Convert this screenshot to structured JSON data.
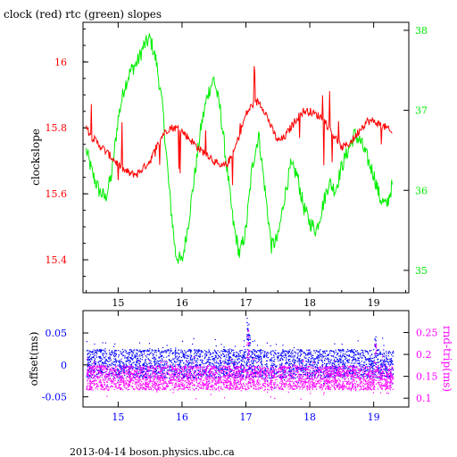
{
  "title": "clock (red) rtc (green) slopes",
  "footer": "2013-04-14 boson.physics.ubc.ca",
  "colors": {
    "clock": "#ff0000",
    "rtc": "#00ee00",
    "offset": "#0000ff",
    "rndtrip": "#ff00ff",
    "axis": "#000000"
  },
  "chart_data": [
    {
      "type": "line",
      "title": "clock (red) rtc (green) slopes",
      "ylabel": "clockslope",
      "ylabel_right": "",
      "xlim": [
        14.45,
        19.55
      ],
      "ylim": [
        15.3,
        16.12
      ],
      "ylim_right": [
        34.72,
        38.1
      ],
      "x_ticks": [
        "15",
        "16",
        "17",
        "18",
        "19"
      ],
      "y_ticks": [
        "15.4",
        "15.6",
        "15.8",
        "16"
      ],
      "y_ticks_right": [
        "35",
        "36",
        "37",
        "38"
      ],
      "series": [
        {
          "name": "clock",
          "axis": "left",
          "x": [
            14.5,
            14.6,
            14.7,
            14.8,
            14.9,
            15.0,
            15.1,
            15.2,
            15.3,
            15.4,
            15.5,
            15.6,
            15.7,
            15.8,
            15.9,
            16.0,
            16.1,
            16.2,
            16.3,
            16.4,
            16.5,
            16.6,
            16.7,
            16.8,
            16.9,
            17.0,
            17.1,
            17.2,
            17.3,
            17.4,
            17.5,
            17.6,
            17.7,
            17.8,
            17.9,
            18.0,
            18.1,
            18.2,
            18.3,
            18.4,
            18.5,
            18.6,
            18.7,
            18.8,
            18.9,
            19.0,
            19.1,
            19.2,
            19.3
          ],
          "values": [
            15.8,
            15.77,
            15.75,
            15.73,
            15.71,
            15.69,
            15.67,
            15.66,
            15.66,
            15.68,
            15.7,
            15.74,
            15.78,
            15.8,
            15.8,
            15.79,
            15.77,
            15.75,
            15.73,
            15.72,
            15.7,
            15.68,
            15.69,
            15.72,
            15.78,
            15.84,
            15.87,
            15.88,
            15.85,
            15.8,
            15.76,
            15.77,
            15.8,
            15.83,
            15.85,
            15.85,
            15.84,
            15.83,
            15.8,
            15.77,
            15.74,
            15.75,
            15.77,
            15.8,
            15.82,
            15.82,
            15.81,
            15.8,
            15.78
          ]
        },
        {
          "name": "rtc",
          "axis": "right",
          "x": [
            14.5,
            14.6,
            14.7,
            14.8,
            14.9,
            15.0,
            15.1,
            15.2,
            15.3,
            15.4,
            15.5,
            15.6,
            15.7,
            15.8,
            15.9,
            16.0,
            16.1,
            16.2,
            16.3,
            16.4,
            16.5,
            16.6,
            16.7,
            16.8,
            16.9,
            17.0,
            17.1,
            17.2,
            17.3,
            17.4,
            17.5,
            17.6,
            17.7,
            17.8,
            17.9,
            18.0,
            18.1,
            18.2,
            18.3,
            18.4,
            18.5,
            18.6,
            18.7,
            18.8,
            18.9,
            19.0,
            19.1,
            19.2,
            19.3
          ],
          "values": [
            36.5,
            36.2,
            36.0,
            35.9,
            36.2,
            36.9,
            37.3,
            37.5,
            37.6,
            37.8,
            37.9,
            37.6,
            37.0,
            36.0,
            35.2,
            35.1,
            35.6,
            36.2,
            36.8,
            37.2,
            37.4,
            37.0,
            36.3,
            35.6,
            35.2,
            35.5,
            36.3,
            36.7,
            36.0,
            35.3,
            35.4,
            35.9,
            36.3,
            36.2,
            35.8,
            35.6,
            35.5,
            35.8,
            36.1,
            36.0,
            36.3,
            36.5,
            36.7,
            36.6,
            36.4,
            36.2,
            35.9,
            35.8,
            36.1
          ]
        }
      ]
    },
    {
      "type": "scatter",
      "ylabel": "offset(ms)",
      "ylabel_right": "rnd-trip(ms)",
      "xlim": [
        14.45,
        19.55
      ],
      "ylim": [
        -0.066,
        0.085
      ],
      "ylim_right": [
        0.08,
        0.3
      ],
      "x_ticks": [
        "15",
        "16",
        "17",
        "18",
        "19"
      ],
      "y_ticks": [
        "-0.05",
        "0",
        "0.05"
      ],
      "y_ticks_right": [
        "0.1",
        "0.15",
        "0.2",
        "0.25"
      ],
      "series": [
        {
          "name": "offset",
          "axis": "left",
          "x_range": [
            14.5,
            19.3
          ],
          "band": [
            -0.02,
            0.025
          ],
          "outliers": [
            {
              "x": 17.02,
              "y": 0.075
            },
            {
              "x": 17.03,
              "y": 0.065
            },
            {
              "x": 17.05,
              "y": 0.05
            },
            {
              "x": 19.02,
              "y": 0.045
            }
          ]
        },
        {
          "name": "rnd-trip",
          "axis": "right",
          "x_range": [
            14.5,
            19.3
          ],
          "band": [
            0.12,
            0.175
          ],
          "outliers": [
            {
              "x": 17.02,
              "y": 0.26
            },
            {
              "x": 17.04,
              "y": 0.24
            },
            {
              "x": 19.02,
              "y": 0.23
            }
          ]
        }
      ]
    }
  ]
}
